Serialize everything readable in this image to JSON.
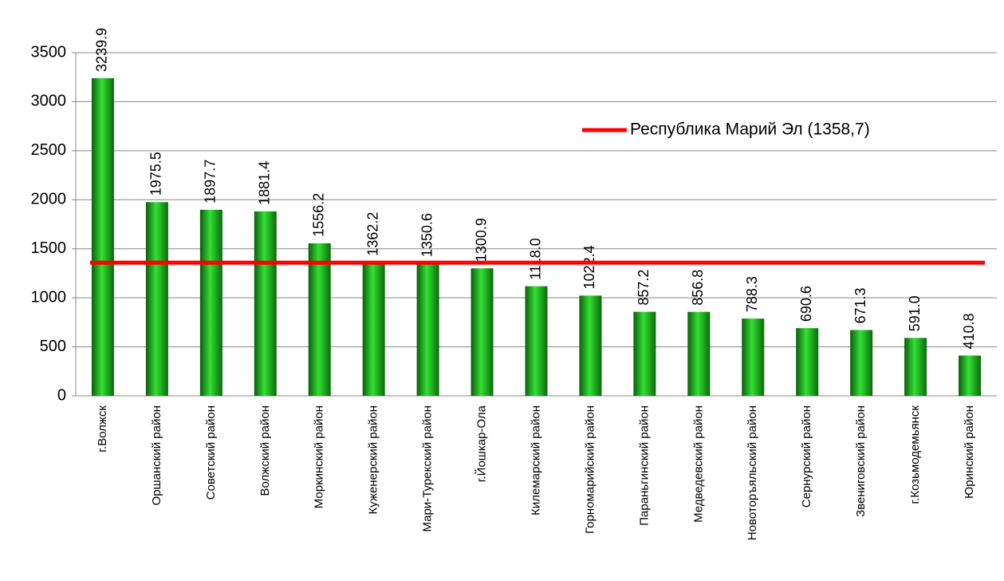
{
  "chart_data": {
    "type": "bar",
    "categories": [
      "г.Волжск",
      "Оршанский район",
      "Советский район",
      "Волжский район",
      "Моркинский район",
      "Куженерский район",
      "Мари-Турекский район",
      "г.Йошкар-Ола",
      "Килемарский район",
      "Горномарийский район",
      "Параньгинский район",
      "Медведевский район",
      "Новоторъяльский район",
      "Сернурский район",
      "Звениговский район",
      "г.Козьмодемьянск",
      "Юринский район"
    ],
    "values": [
      3239.9,
      1975.5,
      1897.7,
      1881.4,
      1556.2,
      1362.2,
      1350.6,
      1300.9,
      1118.0,
      1022.4,
      857.2,
      856.8,
      788.3,
      690.6,
      671.3,
      591.0,
      410.8
    ],
    "value_labels": [
      "3239.9",
      "1975.5",
      "1897.7",
      "1881.4",
      "1556.2",
      "1362.2",
      "1350.6",
      "1300.9",
      "1118.0",
      "1022.4",
      "857.2",
      "856.8",
      "788.3",
      "690.6",
      "671.3",
      "591.0",
      "410.8"
    ],
    "color": "#1aa31a",
    "ylim": [
      0,
      3500
    ],
    "yticks": [
      0,
      500,
      1000,
      1500,
      2000,
      2500,
      3000,
      3500
    ],
    "grid": true,
    "reference_line": {
      "name": "Республика Марий Эл (1358,7)",
      "value": 1358.7,
      "color": "#ff0000"
    }
  }
}
